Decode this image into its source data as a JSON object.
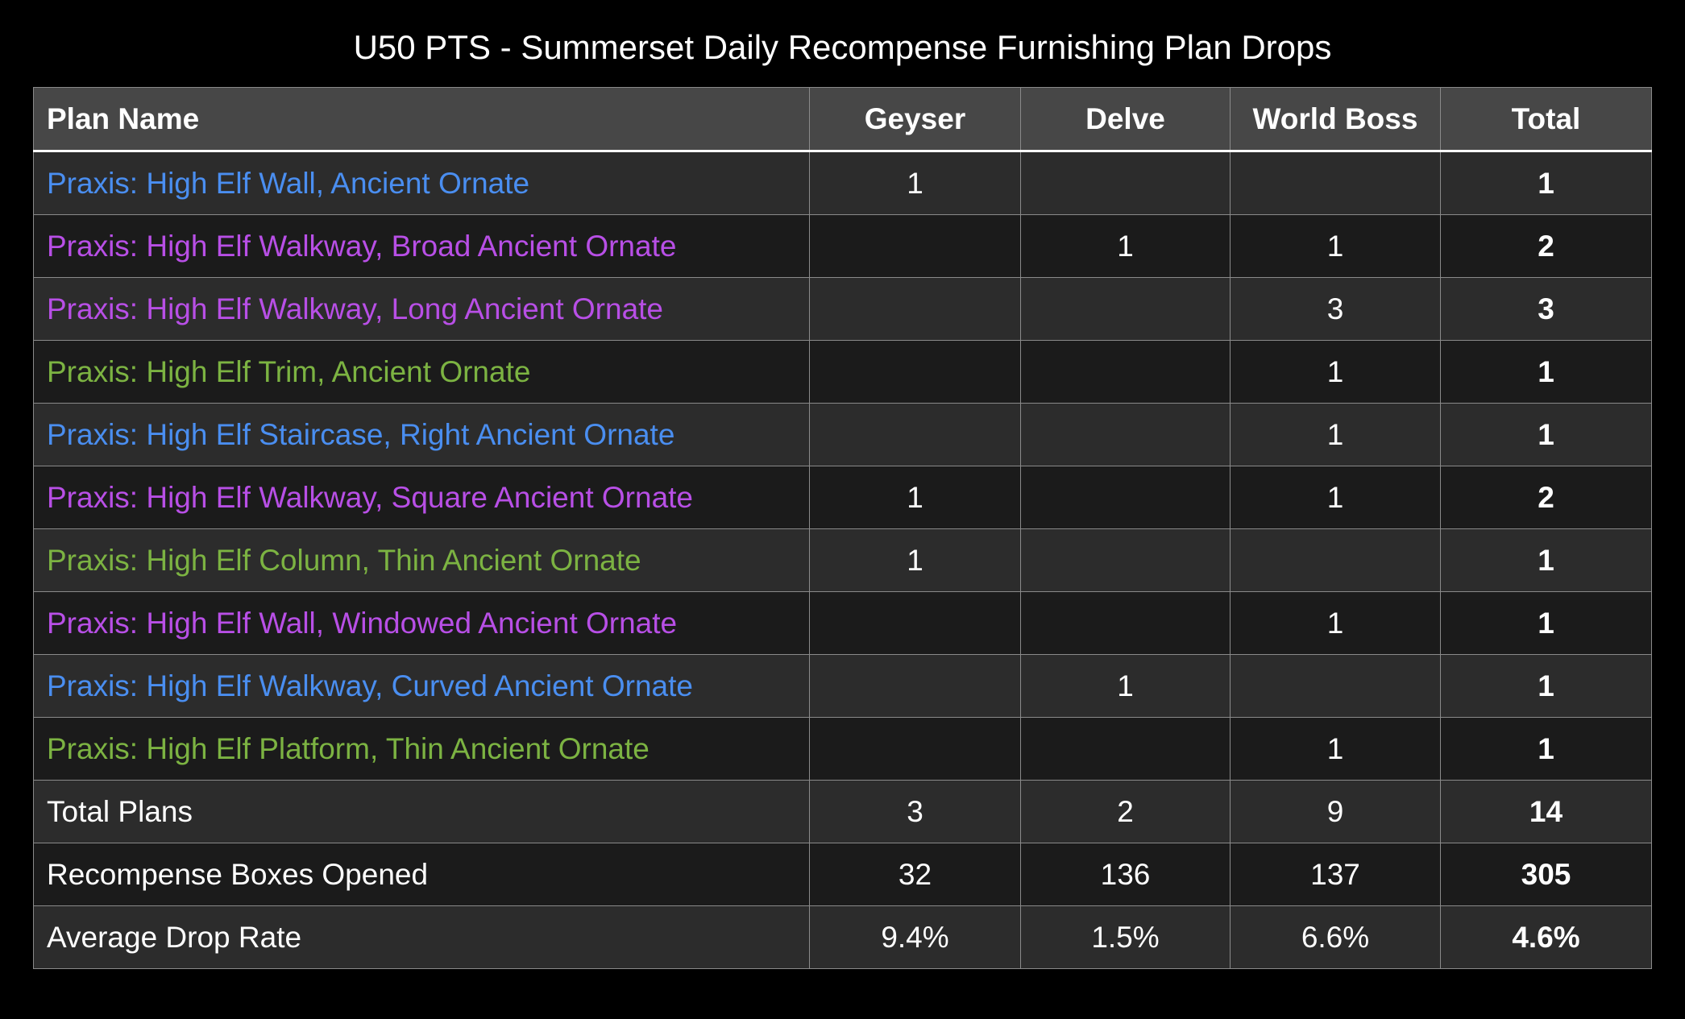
{
  "title": "U50 PTS - Summerset Daily Recompense Furnishing Plan Drops",
  "table": {
    "header": [
      "Plan Name",
      "Geyser",
      "Delve",
      "World Boss",
      "Total"
    ],
    "rows": [
      {
        "name": "Praxis: High Elf Wall, Ancient Ornate",
        "color": "#4a8ef0",
        "cells": [
          1,
          null,
          null,
          1
        ]
      },
      {
        "name": "Praxis: High Elf Walkway, Broad Ancient Ornate",
        "color": "#b84fe6",
        "cells": [
          null,
          1,
          1,
          2
        ]
      },
      {
        "name": "Praxis: High Elf Walkway, Long Ancient Ornate",
        "color": "#b84fe6",
        "cells": [
          null,
          null,
          3,
          3
        ]
      },
      {
        "name": "Praxis: High Elf Trim, Ancient Ornate",
        "color": "#7cb342",
        "cells": [
          null,
          null,
          1,
          1
        ]
      },
      {
        "name": "Praxis: High Elf Staircase, Right Ancient Ornate",
        "color": "#4a8ef0",
        "cells": [
          null,
          null,
          1,
          1
        ]
      },
      {
        "name": "Praxis: High Elf Walkway, Square Ancient Ornate",
        "color": "#b84fe6",
        "cells": [
          1,
          null,
          1,
          2
        ]
      },
      {
        "name": "Praxis: High Elf Column, Thin Ancient Ornate",
        "color": "#7cb342",
        "cells": [
          1,
          null,
          null,
          1
        ]
      },
      {
        "name": "Praxis: High Elf Wall, Windowed Ancient Ornate",
        "color": "#b84fe6",
        "cells": [
          null,
          null,
          1,
          1
        ]
      },
      {
        "name": "Praxis: High Elf Walkway, Curved Ancient Ornate",
        "color": "#4a8ef0",
        "cells": [
          null,
          1,
          null,
          1
        ]
      },
      {
        "name": "Praxis: High Elf Platform, Thin Ancient Ornate",
        "color": "#7cb342",
        "cells": [
          null,
          null,
          1,
          1
        ]
      },
      {
        "name": "Total Plans",
        "color": "#ffffff",
        "cells": [
          3,
          2,
          9,
          14
        ]
      },
      {
        "name": "Recompense Boxes Opened",
        "color": "#ffffff",
        "cells": [
          32,
          136,
          137,
          305
        ]
      },
      {
        "name": "Average Drop Rate",
        "color": "#ffffff",
        "cells": [
          "9.4%",
          "1.5%",
          "6.6%",
          "4.6%"
        ]
      }
    ]
  }
}
